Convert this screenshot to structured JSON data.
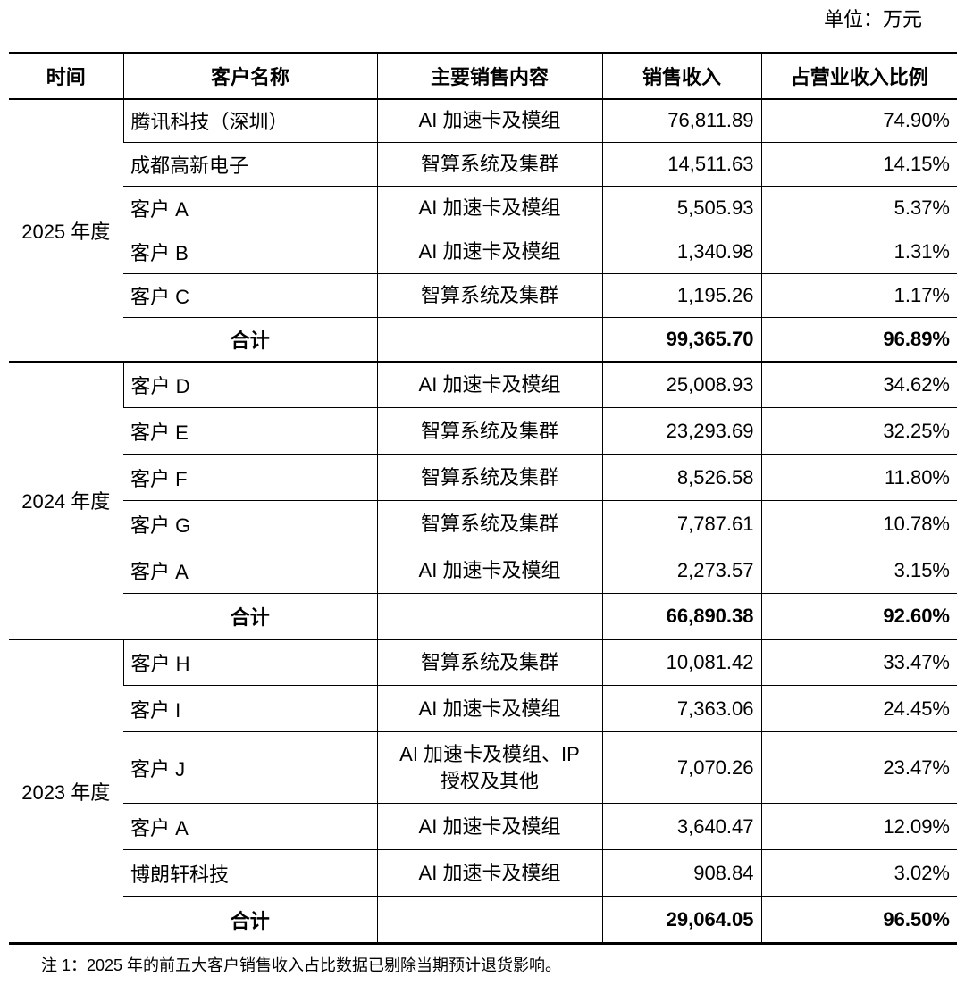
{
  "unit_label": "单位：万元",
  "headers": {
    "time": "时间",
    "customer": "客户名称",
    "content": "主要销售内容",
    "revenue": "销售收入",
    "ratio": "占营业收入比例"
  },
  "groups": [
    {
      "year": "2025 年度",
      "rows": [
        {
          "customer": "腾讯科技（深圳）",
          "content": "AI 加速卡及模组",
          "revenue": "76,811.89",
          "ratio": "74.90%"
        },
        {
          "customer": "成都高新电子",
          "content": "智算系统及集群",
          "revenue": "14,511.63",
          "ratio": "14.15%"
        },
        {
          "customer": "客户 A",
          "content": "AI 加速卡及模组",
          "revenue": "5,505.93",
          "ratio": "5.37%"
        },
        {
          "customer": "客户 B",
          "content": "AI 加速卡及模组",
          "revenue": "1,340.98",
          "ratio": "1.31%"
        },
        {
          "customer": "客户 C",
          "content": "智算系统及集群",
          "revenue": "1,195.26",
          "ratio": "1.17%"
        }
      ],
      "total": {
        "label": "合计",
        "revenue": "99,365.70",
        "ratio": "96.89%"
      }
    },
    {
      "year": "2024 年度",
      "rows": [
        {
          "customer": "客户 D",
          "content": "AI 加速卡及模组",
          "revenue": "25,008.93",
          "ratio": "34.62%"
        },
        {
          "customer": "客户 E",
          "content": "智算系统及集群",
          "revenue": "23,293.69",
          "ratio": "32.25%"
        },
        {
          "customer": "客户 F",
          "content": "智算系统及集群",
          "revenue": "8,526.58",
          "ratio": "11.80%"
        },
        {
          "customer": "客户 G",
          "content": "智算系统及集群",
          "revenue": "7,787.61",
          "ratio": "10.78%"
        },
        {
          "customer": "客户 A",
          "content": "AI 加速卡及模组",
          "revenue": "2,273.57",
          "ratio": "3.15%"
        }
      ],
      "total": {
        "label": "合计",
        "revenue": "66,890.38",
        "ratio": "92.60%"
      }
    },
    {
      "year": "2023 年度",
      "rows": [
        {
          "customer": "客户 H",
          "content": "智算系统及集群",
          "revenue": "10,081.42",
          "ratio": "33.47%"
        },
        {
          "customer": "客户 I",
          "content": "AI 加速卡及模组",
          "revenue": "7,363.06",
          "ratio": "24.45%"
        },
        {
          "customer": "客户 J",
          "content": "AI 加速卡及模组、IP\n授权及其他",
          "revenue": "7,070.26",
          "ratio": "23.47%"
        },
        {
          "customer": "客户 A",
          "content": "AI 加速卡及模组",
          "revenue": "3,640.47",
          "ratio": "12.09%"
        },
        {
          "customer": "博朗轩科技",
          "content": "AI 加速卡及模组",
          "revenue": "908.84",
          "ratio": "3.02%"
        }
      ],
      "total": {
        "label": "合计",
        "revenue": "29,064.05",
        "ratio": "96.50%"
      }
    }
  ],
  "note": "注 1：2025 年的前五大客户销售收入占比数据已剔除当期预计退货影响。"
}
